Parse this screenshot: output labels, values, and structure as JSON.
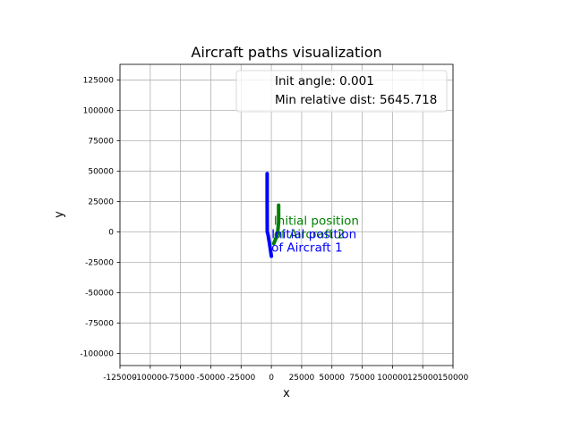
{
  "chart_data": {
    "type": "line",
    "title": "Aircraft paths visualization",
    "xlabel": "x",
    "ylabel": "y",
    "xlim": [
      -125000,
      150000
    ],
    "ylim": [
      -110000,
      138000
    ],
    "xticks": [
      -125000,
      -100000,
      -75000,
      -50000,
      -25000,
      0,
      25000,
      50000,
      75000,
      100000,
      125000,
      150000
    ],
    "yticks": [
      -100000,
      -75000,
      -50000,
      -25000,
      0,
      25000,
      50000,
      75000,
      100000,
      125000
    ],
    "grid": true,
    "legend": {
      "placement": "upper right",
      "entries": [
        "Init angle: 0.001",
        "Min relative dist: 5645.718"
      ]
    },
    "series": [
      {
        "color": "#0000ff",
        "points": [
          [
            -3500,
            48000
          ],
          [
            -3500,
            25000
          ],
          [
            -3400,
            0
          ],
          [
            -2800,
            -2000
          ],
          [
            -1500,
            -10000
          ],
          [
            0,
            -20000
          ]
        ]
      },
      {
        "color": "#008000",
        "points": [
          [
            6000,
            22000
          ],
          [
            6000,
            8000
          ],
          [
            5000,
            -2000
          ],
          [
            3500,
            -6000
          ],
          [
            2000,
            -9500
          ]
        ]
      }
    ],
    "annotations": [
      {
        "lines": [
          "Initial position",
          "of Aircraft 2"
        ],
        "x": 2000,
        "y": 6000,
        "color": "#008000"
      },
      {
        "lines": [
          "Initial position",
          "of Aircraft 1"
        ],
        "x": 0,
        "y": -5000,
        "color": "#0000ff"
      }
    ]
  }
}
